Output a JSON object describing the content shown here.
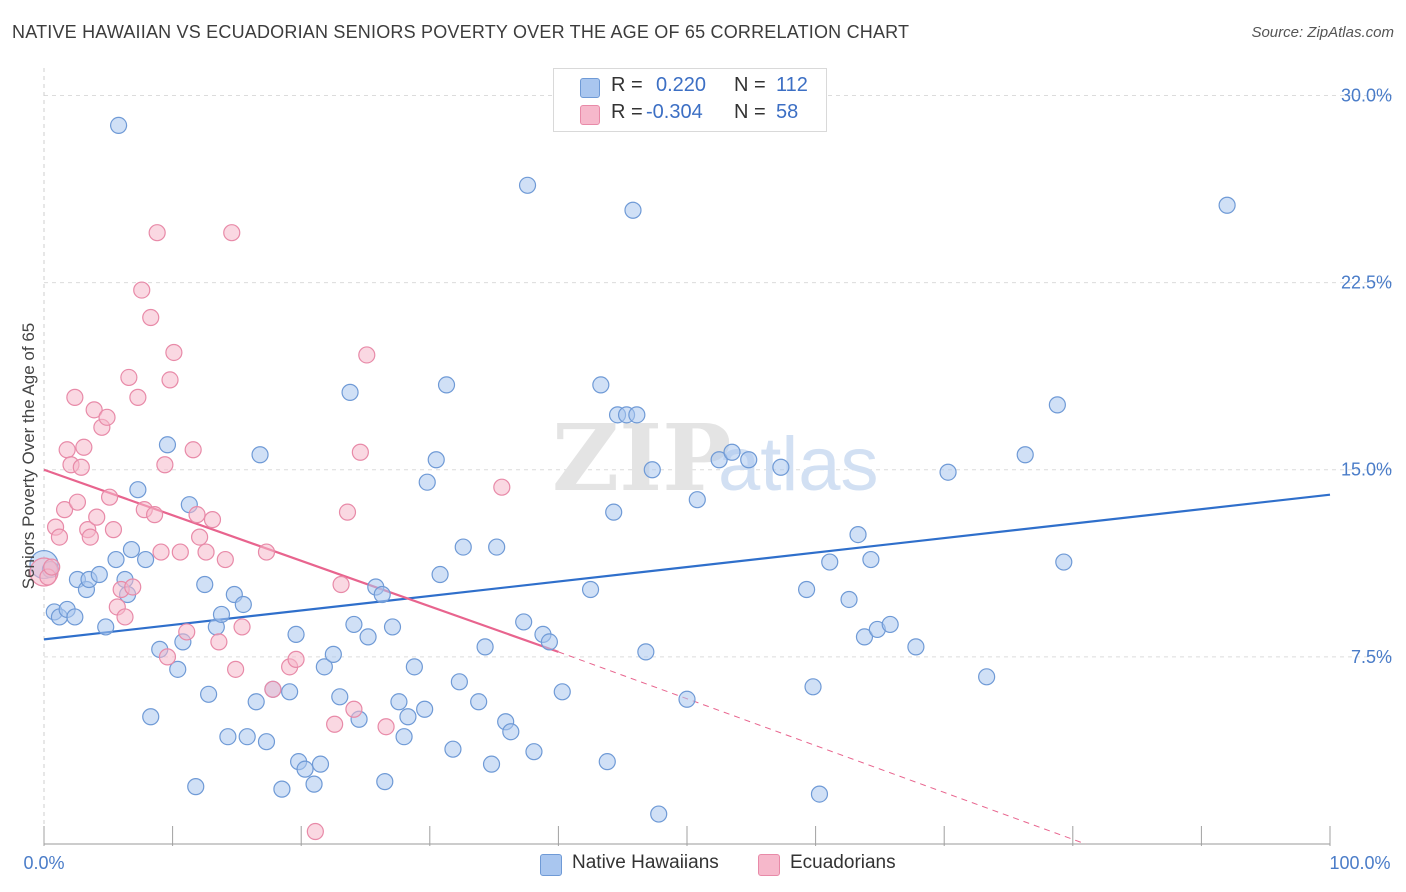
{
  "title": "NATIVE HAWAIIAN VS ECUADORIAN SENIORS POVERTY OVER THE AGE OF 65 CORRELATION CHART",
  "source": "Source: ZipAtlas.com",
  "watermark": {
    "zip": "ZIP",
    "atlas": "atlas"
  },
  "legend_box": {
    "rows": [
      {
        "r_label": "R =",
        "r_value": "0.220",
        "n_label": "N =",
        "n_value": "112",
        "color": "#a9c6ef"
      },
      {
        "r_label": "R =",
        "r_value": "-0.304",
        "n_label": "N =",
        "n_value": "58",
        "color": "#f6b8cb"
      }
    ]
  },
  "bottom_legend": [
    "Native Hawaiians",
    "Ecuadorians"
  ],
  "chart_data": {
    "type": "scatter",
    "title": "NATIVE HAWAIIAN VS ECUADORIAN SENIORS POVERTY OVER THE AGE OF 65 CORRELATION CHART",
    "xlabel": "",
    "ylabel": "Seniors Poverty Over the Age of 65",
    "xlim": [
      0,
      100
    ],
    "ylim": [
      0,
      30.7
    ],
    "x_tick_labels": [
      "0.0%",
      "100.0%"
    ],
    "y_ticks": [
      7.5,
      15.0,
      22.5,
      30.0
    ],
    "y_tick_labels": [
      "7.5%",
      "15.0%",
      "22.5%",
      "30.0%"
    ],
    "grid": true,
    "legend_placement": "top-center",
    "series": [
      {
        "name": "Native Hawaiians",
        "color": "#a9c6ef",
        "stroke": "#6f9ad6",
        "line_color": "#2f6fcb",
        "trend": {
          "x": [
            0,
            100
          ],
          "y": [
            8.2,
            14.0
          ]
        },
        "points": [
          [
            0,
            11.2
          ],
          [
            0.5,
            11.0
          ],
          [
            0.8,
            9.3
          ],
          [
            1.2,
            9.1
          ],
          [
            1.8,
            9.4
          ],
          [
            2.4,
            9.1
          ],
          [
            2.6,
            10.6
          ],
          [
            3.3,
            10.2
          ],
          [
            3.5,
            10.6
          ],
          [
            4.3,
            10.8
          ],
          [
            4.8,
            8.7
          ],
          [
            5.6,
            11.4
          ],
          [
            5.8,
            28.8
          ],
          [
            6.3,
            10.6
          ],
          [
            6.5,
            10.0
          ],
          [
            6.8,
            11.8
          ],
          [
            7.3,
            14.2
          ],
          [
            7.9,
            11.4
          ],
          [
            8.3,
            5.1
          ],
          [
            9.0,
            7.8
          ],
          [
            9.6,
            16.0
          ],
          [
            10.4,
            7.0
          ],
          [
            10.8,
            8.1
          ],
          [
            11.3,
            13.6
          ],
          [
            11.8,
            2.3
          ],
          [
            12.5,
            10.4
          ],
          [
            12.8,
            6.0
          ],
          [
            13.4,
            8.7
          ],
          [
            13.8,
            9.2
          ],
          [
            14.3,
            4.3
          ],
          [
            14.8,
            10.0
          ],
          [
            15.5,
            9.6
          ],
          [
            15.8,
            4.3
          ],
          [
            16.5,
            5.7
          ],
          [
            16.8,
            15.6
          ],
          [
            17.3,
            4.1
          ],
          [
            17.8,
            6.2
          ],
          [
            18.5,
            2.2
          ],
          [
            19.1,
            6.1
          ],
          [
            19.6,
            8.4
          ],
          [
            19.8,
            3.3
          ],
          [
            20.3,
            3.0
          ],
          [
            21.0,
            2.4
          ],
          [
            21.5,
            3.2
          ],
          [
            21.8,
            7.1
          ],
          [
            22.5,
            7.6
          ],
          [
            23.0,
            5.9
          ],
          [
            23.8,
            18.1
          ],
          [
            24.1,
            8.8
          ],
          [
            24.5,
            5.0
          ],
          [
            25.2,
            8.3
          ],
          [
            25.8,
            10.3
          ],
          [
            26.3,
            10.0
          ],
          [
            26.5,
            2.5
          ],
          [
            27.1,
            8.7
          ],
          [
            27.6,
            5.7
          ],
          [
            28.0,
            4.3
          ],
          [
            28.3,
            5.1
          ],
          [
            28.8,
            7.1
          ],
          [
            29.6,
            5.4
          ],
          [
            29.8,
            14.5
          ],
          [
            30.5,
            15.4
          ],
          [
            30.8,
            10.8
          ],
          [
            31.3,
            18.4
          ],
          [
            31.8,
            3.8
          ],
          [
            32.3,
            6.5
          ],
          [
            32.6,
            11.9
          ],
          [
            33.8,
            5.7
          ],
          [
            34.3,
            7.9
          ],
          [
            34.8,
            3.2
          ],
          [
            35.2,
            11.9
          ],
          [
            35.9,
            4.9
          ],
          [
            36.3,
            4.5
          ],
          [
            37.3,
            8.9
          ],
          [
            37.6,
            26.4
          ],
          [
            38.1,
            3.7
          ],
          [
            38.8,
            8.4
          ],
          [
            39.3,
            8.1
          ],
          [
            40.3,
            6.1
          ],
          [
            42.5,
            10.2
          ],
          [
            43.3,
            18.4
          ],
          [
            43.8,
            3.3
          ],
          [
            44.3,
            13.3
          ],
          [
            44.6,
            17.2
          ],
          [
            45.3,
            17.2
          ],
          [
            45.8,
            25.4
          ],
          [
            46.1,
            17.2
          ],
          [
            46.8,
            7.7
          ],
          [
            47.3,
            15.0
          ],
          [
            47.8,
            1.2
          ],
          [
            50.0,
            5.8
          ],
          [
            50.8,
            13.8
          ],
          [
            52.5,
            15.4
          ],
          [
            53.5,
            15.7
          ],
          [
            54.8,
            15.4
          ],
          [
            57.3,
            15.1
          ],
          [
            59.3,
            10.2
          ],
          [
            59.8,
            6.3
          ],
          [
            60.3,
            2.0
          ],
          [
            61.1,
            11.3
          ],
          [
            62.6,
            9.8
          ],
          [
            63.3,
            12.4
          ],
          [
            63.8,
            8.3
          ],
          [
            64.3,
            11.4
          ],
          [
            64.8,
            8.6
          ],
          [
            65.8,
            8.8
          ],
          [
            67.8,
            7.9
          ],
          [
            70.3,
            14.9
          ],
          [
            73.3,
            6.7
          ],
          [
            76.3,
            15.6
          ],
          [
            78.8,
            17.6
          ],
          [
            79.3,
            11.3
          ],
          [
            92.0,
            25.6
          ]
        ]
      },
      {
        "name": "Ecuadorians",
        "color": "#f6b8cb",
        "stroke": "#e88aa8",
        "line_color": "#e8648e",
        "trend": {
          "x": [
            0,
            40.0
          ],
          "y": [
            15.0,
            7.7
          ]
        },
        "trend_dashed": {
          "x": [
            40.0,
            81.0
          ],
          "y": [
            7.7,
            0.0
          ]
        },
        "points": [
          [
            0,
            10.9
          ],
          [
            0.3,
            10.7
          ],
          [
            0.6,
            11.1
          ],
          [
            0.9,
            12.7
          ],
          [
            1.2,
            12.3
          ],
          [
            1.6,
            13.4
          ],
          [
            1.8,
            15.8
          ],
          [
            2.1,
            15.2
          ],
          [
            2.4,
            17.9
          ],
          [
            2.6,
            13.7
          ],
          [
            2.9,
            15.1
          ],
          [
            3.1,
            15.9
          ],
          [
            3.4,
            12.6
          ],
          [
            3.6,
            12.3
          ],
          [
            3.9,
            17.4
          ],
          [
            4.1,
            13.1
          ],
          [
            4.5,
            16.7
          ],
          [
            4.9,
            17.1
          ],
          [
            5.1,
            13.9
          ],
          [
            5.4,
            12.6
          ],
          [
            5.7,
            9.5
          ],
          [
            6.0,
            10.2
          ],
          [
            6.3,
            9.1
          ],
          [
            6.6,
            18.7
          ],
          [
            6.9,
            10.3
          ],
          [
            7.3,
            17.9
          ],
          [
            7.6,
            22.2
          ],
          [
            7.8,
            13.4
          ],
          [
            8.3,
            21.1
          ],
          [
            8.6,
            13.2
          ],
          [
            8.8,
            24.5
          ],
          [
            9.1,
            11.7
          ],
          [
            9.4,
            15.2
          ],
          [
            9.6,
            7.5
          ],
          [
            9.8,
            18.6
          ],
          [
            10.1,
            19.7
          ],
          [
            10.6,
            11.7
          ],
          [
            11.1,
            8.5
          ],
          [
            11.6,
            15.8
          ],
          [
            11.9,
            13.2
          ],
          [
            12.1,
            12.3
          ],
          [
            12.6,
            11.7
          ],
          [
            13.1,
            13.0
          ],
          [
            13.6,
            8.1
          ],
          [
            14.1,
            11.4
          ],
          [
            14.6,
            24.5
          ],
          [
            14.9,
            7.0
          ],
          [
            15.4,
            8.7
          ],
          [
            17.3,
            11.7
          ],
          [
            17.8,
            6.2
          ],
          [
            19.1,
            7.1
          ],
          [
            19.6,
            7.4
          ],
          [
            21.1,
            0.5
          ],
          [
            22.6,
            4.8
          ],
          [
            23.1,
            10.4
          ],
          [
            23.6,
            13.3
          ],
          [
            24.1,
            5.4
          ],
          [
            24.6,
            15.7
          ],
          [
            25.1,
            19.6
          ],
          [
            26.6,
            4.7
          ],
          [
            35.6,
            14.3
          ]
        ]
      }
    ]
  }
}
